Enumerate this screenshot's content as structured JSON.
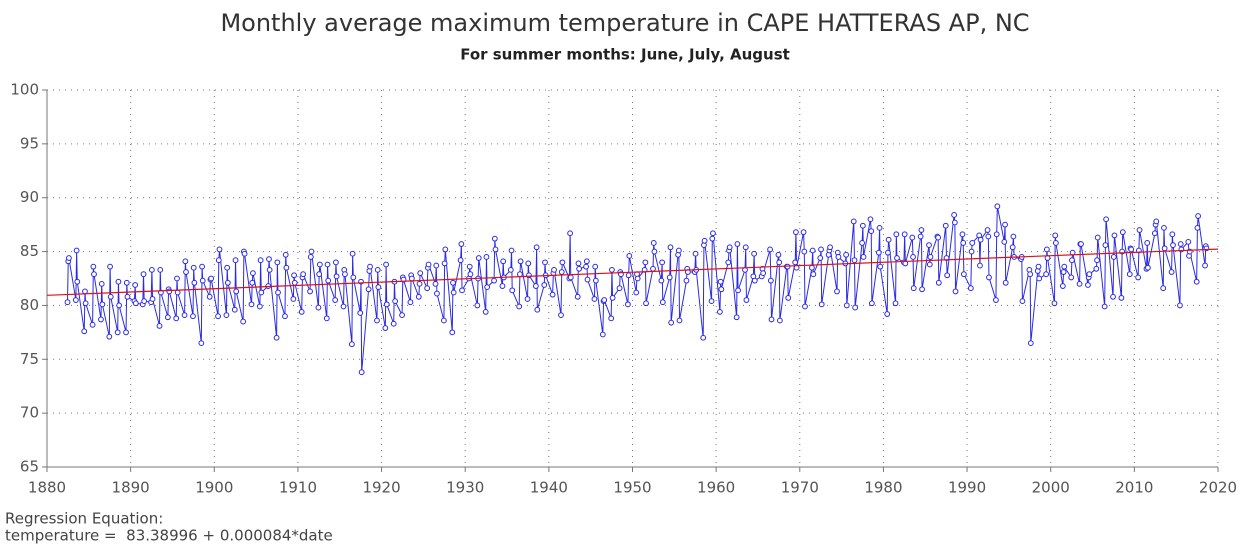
{
  "chart_data": {
    "type": "line",
    "title": "Monthly average maximum temperature in CAPE HATTERAS AP, NC",
    "subtitle": "For summer months: June, July, August",
    "footnote": [
      "Regression Equation:",
      "temperature =  83.38996 + 0.000084*date"
    ],
    "xlim": [
      1880,
      2020
    ],
    "xticks": [
      1880,
      1890,
      1900,
      1910,
      1920,
      1930,
      1940,
      1950,
      1960,
      1970,
      1980,
      1990,
      2000,
      2010,
      2020
    ],
    "ylim": [
      65,
      100
    ],
    "yticks": [
      65,
      70,
      75,
      80,
      85,
      90,
      95,
      100
    ],
    "grid": true,
    "x": [
      1882.45,
      1882.54,
      1882.62,
      1883.45,
      1883.54,
      1883.62,
      1884.45,
      1884.54,
      1884.62,
      1885.45,
      1885.54,
      1885.62,
      1886.45,
      1886.54,
      1886.62,
      1887.45,
      1887.54,
      1887.62,
      1888.45,
      1888.54,
      1888.62,
      1889.45,
      1889.54,
      1889.62,
      1890.45,
      1890.54,
      1890.62,
      1891.45,
      1891.54,
      1891.62,
      1892.45,
      1892.54,
      1892.62,
      1893.45,
      1893.54,
      1893.62,
      1894.45,
      1894.54,
      1894.62,
      1895.45,
      1895.54,
      1895.62,
      1896.45,
      1896.54,
      1896.62,
      1897.45,
      1897.54,
      1897.62,
      1898.45,
      1898.54,
      1898.62,
      1899.45,
      1899.54,
      1899.62,
      1900.45,
      1900.54,
      1900.62,
      1901.45,
      1901.54,
      1901.62,
      1902.45,
      1902.54,
      1902.62,
      1903.45,
      1903.54,
      1903.62,
      1904.45,
      1904.54,
      1904.62,
      1905.45,
      1905.54,
      1905.62,
      1906.45,
      1906.54,
      1906.62,
      1907.45,
      1907.54,
      1907.62,
      1908.45,
      1908.54,
      1908.62,
      1909.45,
      1909.54,
      1909.62,
      1910.45,
      1910.54,
      1910.62,
      1911.45,
      1911.54,
      1911.62,
      1912.45,
      1912.54,
      1912.62,
      1913.45,
      1913.54,
      1913.62,
      1914.45,
      1914.54,
      1914.62,
      1915.45,
      1915.54,
      1915.62,
      1916.45,
      1916.54,
      1916.62,
      1917.45,
      1917.54,
      1917.62,
      1918.45,
      1918.54,
      1918.62,
      1919.45,
      1919.54,
      1919.62,
      1920.45,
      1920.54,
      1920.62,
      1921.45,
      1921.54,
      1921.62,
      1922.45,
      1922.54,
      1922.62,
      1923.45,
      1923.54,
      1923.62,
      1924.45,
      1924.54,
      1924.62,
      1925.45,
      1925.54,
      1925.62,
      1926.45,
      1926.54,
      1926.62,
      1927.45,
      1927.54,
      1927.62,
      1928.45,
      1928.54,
      1928.62,
      1929.45,
      1929.54,
      1929.62,
      1930.45,
      1930.54,
      1930.62,
      1931.45,
      1931.54,
      1931.62,
      1932.45,
      1932.54,
      1932.62,
      1933.45,
      1933.54,
      1933.62,
      1934.45,
      1934.54,
      1934.62,
      1935.45,
      1935.54,
      1935.62,
      1936.45,
      1936.54,
      1936.62,
      1937.45,
      1937.54,
      1937.62,
      1938.45,
      1938.54,
      1938.62,
      1939.45,
      1939.54,
      1939.62,
      1940.45,
      1940.54,
      1940.62,
      1941.45,
      1941.54,
      1941.62,
      1942.45,
      1942.54,
      1942.62,
      1943.45,
      1943.54,
      1943.62,
      1944.45,
      1944.54,
      1944.62,
      1945.45,
      1945.54,
      1945.62,
      1946.45,
      1946.54,
      1946.62,
      1947.45,
      1947.54,
      1947.62,
      1948.45,
      1948.54,
      1948.62,
      1949.45,
      1949.54,
      1949.62,
      1950.45,
      1950.54,
      1950.62,
      1951.45,
      1951.54,
      1951.62,
      1952.45,
      1952.54,
      1952.62,
      1953.45,
      1953.54,
      1953.62,
      1954.45,
      1954.54,
      1954.62,
      1955.45,
      1955.54,
      1955.62,
      1956.45,
      1956.54,
      1956.62,
      1957.45,
      1957.54,
      1957.62,
      1958.45,
      1958.54,
      1958.62,
      1959.45,
      1959.54,
      1959.62,
      1960.45,
      1960.54,
      1960.62,
      1961.45,
      1961.54,
      1961.62,
      1962.45,
      1962.54,
      1962.62,
      1963.45,
      1963.54,
      1963.62,
      1964.45,
      1964.54,
      1964.62,
      1965.45,
      1965.54,
      1965.62,
      1966.45,
      1966.54,
      1966.62,
      1967.45,
      1967.54,
      1967.62,
      1968.45,
      1968.54,
      1968.62,
      1969.45,
      1969.54,
      1969.62,
      1970.45,
      1970.54,
      1970.62,
      1971.45,
      1971.54,
      1971.62,
      1972.45,
      1972.54,
      1972.62,
      1973.45,
      1973.54,
      1973.62,
      1974.45,
      1974.54,
      1974.62,
      1975.45,
      1975.54,
      1975.62,
      1976.45,
      1976.54,
      1976.62,
      1977.45,
      1977.54,
      1977.62,
      1978.45,
      1978.54,
      1978.62,
      1979.45,
      1979.54,
      1979.62,
      1980.45,
      1980.54,
      1980.62,
      1981.45,
      1981.54,
      1981.62,
      1982.45,
      1982.54,
      1982.62,
      1983.45,
      1983.54,
      1983.62,
      1984.45,
      1984.54,
      1984.62,
      1985.45,
      1985.54,
      1985.62,
      1986.45,
      1986.54,
      1986.62,
      1987.45,
      1987.54,
      1987.62,
      1988.45,
      1988.54,
      1988.62,
      1989.45,
      1989.54,
      1989.62,
      1990.45,
      1990.54,
      1990.62,
      1991.45,
      1991.54,
      1991.62,
      1992.45,
      1992.54,
      1992.62,
      1993.45,
      1993.54,
      1993.62,
      1994.45,
      1994.54,
      1994.62,
      1995.45,
      1995.54,
      1995.62,
      1996.45,
      1996.54,
      1996.62,
      1997.45,
      1997.54,
      1997.62,
      1998.45,
      1998.54,
      1998.62,
      1999.45,
      1999.54,
      1999.62,
      2000.45,
      2000.54,
      2000.62,
      2001.45,
      2001.54,
      2001.62,
      2002.45,
      2002.54,
      2002.62,
      2003.45,
      2003.54,
      2003.62,
      2004.45,
      2004.54,
      2004.62,
      2005.45,
      2005.54,
      2005.62,
      2006.45,
      2006.54,
      2006.62,
      2007.45,
      2007.54,
      2007.62,
      2008.45,
      2008.54,
      2008.62,
      2009.45,
      2009.54,
      2009.62,
      2010.45,
      2010.54,
      2010.62,
      2011.45,
      2011.54,
      2011.62,
      2012.45,
      2012.54,
      2012.62,
      2013.45,
      2013.54,
      2013.62,
      2014.45,
      2014.54,
      2014.62,
      2015.45,
      2015.54,
      2015.62,
      2016.45,
      2016.54,
      2016.62,
      2017.45,
      2017.54,
      2017.62,
      2018.45,
      2018.54,
      2018.62
    ],
    "series": [
      {
        "color": "#2a2ae6",
        "values": [
          80.3,
          84.1,
          84.4,
          80.5,
          85.1,
          82.2,
          77.6,
          81.3,
          80.2,
          78.2,
          83.6,
          82.9,
          78.7,
          82.0,
          80.1,
          77.1,
          83.6,
          80.8,
          77.5,
          82.2,
          80.0,
          77.5,
          82.1,
          80.8,
          80.4,
          81.9,
          80.2,
          80.1,
          82.9,
          80.4,
          80.3,
          83.3,
          80.6,
          78.1,
          83.3,
          81.2,
          78.9,
          81.5,
          81.3,
          78.8,
          82.5,
          81.2,
          79.1,
          84.1,
          83.1,
          79.0,
          83.5,
          82.1,
          76.5,
          83.6,
          82.3,
          80.8,
          82.4,
          82.5,
          79.0,
          84.2,
          85.2,
          79.1,
          83.5,
          82.1,
          79.6,
          84.2,
          81.3,
          78.5,
          85.0,
          84.8,
          80.1,
          82.1,
          83.0,
          79.9,
          84.2,
          81.2,
          81.8,
          84.3,
          83.3,
          77.0,
          84.0,
          81.2,
          79.0,
          84.7,
          83.5,
          80.6,
          82.8,
          82.1,
          79.4,
          82.6,
          82.9,
          81.3,
          84.5,
          85.0,
          79.8,
          82.9,
          83.8,
          78.8,
          83.8,
          82.3,
          80.5,
          84.0,
          82.7,
          79.9,
          83.3,
          82.9,
          76.4,
          84.8,
          82.6,
          79.3,
          82.2,
          73.8,
          81.5,
          83.2,
          83.6,
          78.6,
          83.3,
          81.7,
          77.9,
          83.8,
          80.1,
          78.3,
          82.2,
          80.4,
          79.1,
          82.6,
          82.4,
          80.3,
          82.8,
          82.5,
          80.8,
          82.0,
          83.0,
          81.6,
          83.5,
          83.8,
          82.0,
          83.7,
          81.1,
          78.6,
          83.9,
          85.2,
          77.5,
          82.1,
          81.2,
          84.2,
          85.7,
          81.4,
          82.5,
          83.6,
          82.9,
          80.0,
          82.5,
          84.4,
          79.4,
          84.5,
          81.7,
          82.3,
          86.2,
          85.2,
          81.8,
          84.1,
          82.6,
          83.3,
          85.1,
          81.4,
          79.9,
          82.9,
          84.1,
          80.6,
          83.9,
          82.8,
          81.8,
          85.4,
          79.6,
          81.9,
          84.0,
          82.8,
          81.0,
          83.0,
          83.3,
          79.1,
          83.1,
          84.0,
          82.5,
          86.7,
          82.6,
          80.8,
          83.9,
          83.4,
          83.6,
          84.1,
          82.4,
          80.6,
          83.6,
          82.3,
          77.3,
          80.4,
          80.5,
          78.8,
          83.3,
          80.7,
          81.6,
          83.1,
          82.9,
          80.1,
          82.8,
          84.6,
          81.2,
          82.9,
          82.5,
          83.3,
          84.0,
          80.2,
          83.4,
          85.8,
          85.0,
          82.3,
          84.0,
          80.3,
          82.6,
          85.4,
          78.4,
          84.7,
          85.1,
          78.6,
          82.3,
          83.4,
          83.1,
          83.1,
          84.8,
          83.3,
          77.0,
          85.6,
          86.0,
          80.4,
          86.2,
          86.7,
          79.4,
          82.2,
          81.5,
          84.0,
          85.1,
          85.4,
          78.9,
          85.7,
          81.4,
          83.3,
          85.4,
          80.5,
          82.7,
          84.8,
          82.3,
          82.7,
          83.4,
          83.0,
          85.2,
          82.3,
          78.7,
          84.7,
          84.0,
          78.6,
          83.6,
          83.6,
          80.7,
          84.0,
          86.8,
          83.5,
          86.8,
          85.0,
          79.9,
          83.5,
          85.1,
          82.9,
          84.4,
          85.2,
          80.1,
          84.7,
          85.1,
          85.4,
          81.3,
          84.9,
          84.5,
          83.9,
          84.7,
          80.0,
          87.8,
          84.2,
          79.8,
          85.8,
          87.4,
          84.5,
          88.0,
          86.9,
          80.2,
          84.9,
          87.2,
          83.6,
          79.2,
          84.9,
          86.1,
          80.2,
          86.6,
          84.4,
          84.0,
          86.6,
          83.9,
          86.3,
          84.5,
          81.6,
          86.4,
          87.0,
          81.5,
          85.6,
          83.8,
          84.5,
          86.4,
          86.3,
          82.1,
          87.4,
          84.4,
          82.8,
          88.4,
          87.7,
          81.3,
          86.6,
          85.8,
          82.9,
          81.6,
          85.0,
          85.8,
          86.5,
          83.7,
          86.1,
          87.0,
          86.4,
          82.6,
          80.5,
          86.6,
          89.2,
          85.9,
          87.5,
          82.1,
          85.4,
          86.4,
          84.5,
          84.3,
          84.5,
          80.4,
          83.3,
          82.9,
          76.5,
          83.2,
          83.6,
          82.5,
          82.9,
          85.2,
          84.4,
          80.2,
          86.5,
          85.8,
          81.8,
          83.1,
          83.6,
          82.6,
          84.2,
          84.9,
          82.0,
          85.7,
          85.7,
          81.9,
          82.6,
          82.9,
          83.4,
          84.2,
          86.3,
          79.9,
          85.6,
          88.0,
          80.8,
          84.5,
          86.5,
          80.7,
          85.0,
          86.8,
          82.9,
          85.3,
          85.2,
          82.6,
          85.1,
          87.0,
          83.4,
          85.8,
          83.5,
          86.7,
          87.5,
          87.8,
          81.6,
          87.2,
          85.3,
          83.1,
          86.6,
          85.6,
          80.0,
          85.7,
          85.2,
          85.9,
          84.6,
          85.0,
          82.2,
          87.2,
          88.3,
          83.7,
          85.5,
          85.3
        ]
      }
    ],
    "regression": {
      "color": "#e01010",
      "x": [
        1880,
        2020
      ],
      "values": [
        80.94,
        85.23
      ]
    }
  }
}
